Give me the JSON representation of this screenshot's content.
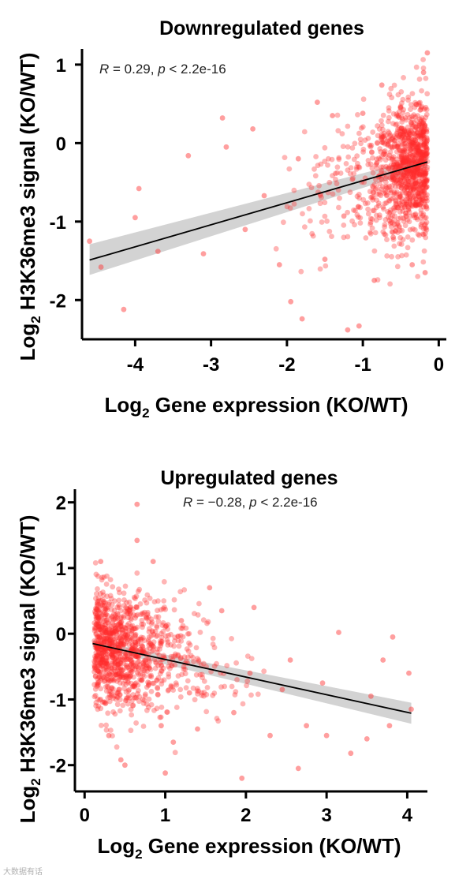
{
  "chart_data": [
    {
      "type": "scatter",
      "title": "Downregulated genes",
      "annotation": {
        "r_label": "R",
        "r_text": " = 0.29, ",
        "p_label": "p",
        "p_text": " < 2.2e-16"
      },
      "xlabel": {
        "main": "Log",
        "sub": "2",
        "rest": " Gene expression (KO/WT)"
      },
      "ylabel": {
        "main": "Log",
        "sub": "2",
        "rest": " H3K36me3 signal (KO/WT)"
      },
      "xlim": [
        -4.7,
        0.1
      ],
      "ylim": [
        -2.5,
        1.2
      ],
      "xticks": [
        "-4",
        "-3",
        "-2",
        "-1",
        "0"
      ],
      "xtick_values": [
        -4,
        -3,
        -2,
        -1,
        0
      ],
      "yticks": [
        "1",
        "0",
        "-1",
        "-2"
      ],
      "ytick_values": [
        1,
        0,
        -1,
        -2
      ],
      "point_color": "#ff2a2a",
      "fit": {
        "x": [
          -4.6,
          -0.15
        ],
        "y": [
          -1.49,
          -0.24
        ],
        "ci_low": [
          -1.68,
          -0.31
        ],
        "ci_high": [
          -1.29,
          -0.17
        ],
        "color": "#000000"
      },
      "sample_points": [
        [
          -4.6,
          -1.25
        ],
        [
          -4.45,
          -1.58
        ],
        [
          -4.15,
          -2.12
        ],
        [
          -4.0,
          -0.95
        ],
        [
          -3.95,
          -0.58
        ],
        [
          -3.7,
          -1.38
        ],
        [
          -3.3,
          -0.16
        ],
        [
          -3.1,
          -1.41
        ],
        [
          -2.85,
          0.32
        ],
        [
          -2.8,
          -0.05
        ],
        [
          -2.55,
          -1.1
        ],
        [
          -2.45,
          0.18
        ],
        [
          -2.3,
          -0.67
        ],
        [
          -2.1,
          -1.55
        ],
        [
          -1.95,
          -2.02
        ],
        [
          -1.85,
          -0.2
        ],
        [
          -1.8,
          -2.24
        ],
        [
          -1.6,
          0.52
        ],
        [
          -1.5,
          -1.48
        ],
        [
          -1.4,
          0.35
        ],
        [
          -1.25,
          -0.93
        ],
        [
          -1.2,
          -2.38
        ],
        [
          -1.05,
          -2.33
        ],
        [
          -1.0,
          0.38
        ],
        [
          -0.85,
          -1.75
        ],
        [
          -0.75,
          0.74
        ],
        [
          -0.6,
          -1.2
        ],
        [
          -0.5,
          0.45
        ],
        [
          -0.4,
          -0.85
        ],
        [
          -0.35,
          -1.55
        ],
        [
          -0.3,
          0.2
        ],
        [
          -0.25,
          -0.4
        ],
        [
          -0.2,
          0.9
        ],
        [
          -0.15,
          1.15
        ],
        [
          -0.18,
          -1.65
        ]
      ]
    },
    {
      "type": "scatter",
      "title": "Upregulated genes",
      "annotation": {
        "r_label": "R",
        "r_text": " = −0.28, ",
        "p_label": "p",
        "p_text": " < 2.2e-16"
      },
      "xlabel": {
        "main": "Log",
        "sub": "2",
        "rest": " Gene expression (KO/WT)"
      },
      "ylabel": {
        "main": "Log",
        "sub": "2",
        "rest": " H3K36me3 signal (KO/WT)"
      },
      "xlim": [
        -0.12,
        4.25
      ],
      "ylim": [
        -2.4,
        2.2
      ],
      "xticks": [
        "0",
        "1",
        "2",
        "3",
        "4"
      ],
      "xtick_values": [
        0,
        1,
        2,
        3,
        4
      ],
      "yticks": [
        "2",
        "1",
        "0",
        "-1",
        "-2"
      ],
      "ytick_values": [
        2,
        1,
        0,
        -1,
        -2
      ],
      "point_color": "#ff2a2a",
      "fit": {
        "x": [
          0.1,
          4.05
        ],
        "y": [
          -0.15,
          -1.21
        ],
        "ci_low": [
          -0.2,
          -1.37
        ],
        "ci_high": [
          -0.1,
          -1.05
        ],
        "color": "#000000"
      },
      "sample_points": [
        [
          0.65,
          1.97
        ],
        [
          0.65,
          1.42
        ],
        [
          0.85,
          1.1
        ],
        [
          0.2,
          1.1
        ],
        [
          0.45,
          -1.92
        ],
        [
          0.5,
          -2.0
        ],
        [
          1.0,
          -2.12
        ],
        [
          1.1,
          -1.65
        ],
        [
          1.2,
          0.2
        ],
        [
          1.4,
          -1.45
        ],
        [
          1.55,
          0.7
        ],
        [
          1.7,
          0.35
        ],
        [
          1.85,
          -1.2
        ],
        [
          1.95,
          -2.2
        ],
        [
          2.05,
          -0.6
        ],
        [
          2.1,
          0.4
        ],
        [
          2.3,
          -1.55
        ],
        [
          2.45,
          -0.85
        ],
        [
          2.65,
          -2.05
        ],
        [
          2.75,
          -1.4
        ],
        [
          2.95,
          -0.75
        ],
        [
          3.0,
          -1.55
        ],
        [
          3.15,
          0.02
        ],
        [
          3.3,
          -1.82
        ],
        [
          3.5,
          -1.6
        ],
        [
          3.55,
          -0.95
        ],
        [
          3.7,
          -0.4
        ],
        [
          3.78,
          -1.4
        ],
        [
          3.82,
          -0.05
        ],
        [
          4.02,
          -0.6
        ],
        [
          4.05,
          -1.15
        ],
        [
          2.55,
          -0.4
        ],
        [
          1.3,
          -0.9
        ],
        [
          0.95,
          -1.4
        ],
        [
          0.3,
          -1.55
        ]
      ]
    }
  ],
  "watermark": "大数据有话"
}
